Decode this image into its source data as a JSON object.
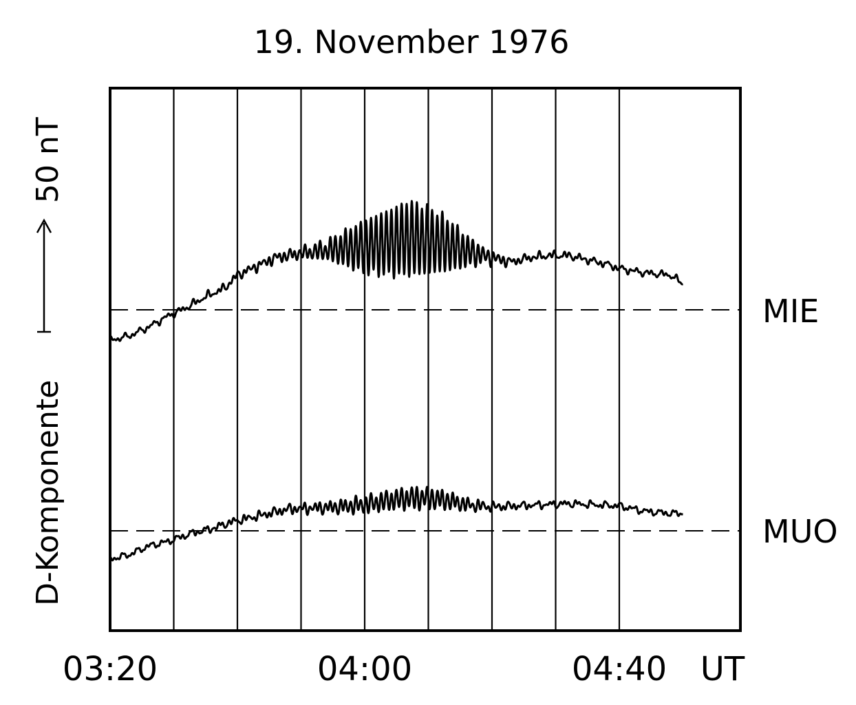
{
  "chart_data": {
    "type": "line",
    "title": "19. November 1976",
    "ylabel": "D-Komponente",
    "scale_bar_label": "50 nT",
    "x_unit": "UT",
    "x_ticks": [
      "03:20",
      "04:00",
      "04:40"
    ],
    "x_range": [
      "03:20",
      "04:50"
    ],
    "grid": "vertical lines every 10 min",
    "series": [
      {
        "name": "MIE",
        "baseline_nT": 0,
        "trend_nT": [
          [
            0,
            -14
          ],
          [
            3,
            -12
          ],
          [
            6,
            -8
          ],
          [
            9,
            -3
          ],
          [
            12,
            1
          ],
          [
            15,
            6
          ],
          [
            18,
            10
          ],
          [
            20,
            16
          ],
          [
            23,
            20
          ],
          [
            26,
            24
          ],
          [
            30,
            26
          ],
          [
            33,
            27
          ],
          [
            36,
            28
          ],
          [
            40,
            29
          ],
          [
            44,
            31
          ],
          [
            47,
            33
          ],
          [
            50,
            32
          ],
          [
            53,
            30
          ],
          [
            56,
            27
          ],
          [
            60,
            24
          ],
          [
            63,
            22
          ],
          [
            66,
            24
          ],
          [
            69,
            25
          ],
          [
            72,
            25
          ],
          [
            75,
            23
          ],
          [
            78,
            21
          ],
          [
            80,
            19
          ],
          [
            84,
            17
          ],
          [
            88,
            16
          ],
          [
            90,
            12
          ]
        ],
        "oscillation_amplitude_nT": [
          [
            0,
            0
          ],
          [
            10,
            0.4
          ],
          [
            20,
            1
          ],
          [
            30,
            2
          ],
          [
            34,
            4
          ],
          [
            37,
            8
          ],
          [
            40,
            12
          ],
          [
            44,
            15
          ],
          [
            47,
            17
          ],
          [
            50,
            15
          ],
          [
            53,
            12
          ],
          [
            56,
            7
          ],
          [
            59,
            3
          ],
          [
            63,
            1
          ],
          [
            70,
            0.8
          ],
          [
            80,
            0.5
          ],
          [
            90,
            0.3
          ]
        ],
        "oscillation_period_min": 0.8
      },
      {
        "name": "MUO",
        "baseline_nT": 0,
        "trend_nT": [
          [
            0,
            -13
          ],
          [
            3,
            -11
          ],
          [
            6,
            -7
          ],
          [
            9,
            -5
          ],
          [
            13,
            -1
          ],
          [
            16,
            1
          ],
          [
            19,
            4
          ],
          [
            22,
            6
          ],
          [
            25,
            8
          ],
          [
            28,
            10
          ],
          [
            32,
            10.5
          ],
          [
            36,
            11
          ],
          [
            40,
            12
          ],
          [
            44,
            14
          ],
          [
            47,
            15
          ],
          [
            50,
            15
          ],
          [
            53,
            14
          ],
          [
            56,
            12
          ],
          [
            60,
            11
          ],
          [
            64,
            11.5
          ],
          [
            68,
            12
          ],
          [
            72,
            12.5
          ],
          [
            76,
            12
          ],
          [
            80,
            11.5
          ],
          [
            84,
            9
          ],
          [
            88,
            8
          ],
          [
            90,
            8
          ]
        ],
        "oscillation_amplitude_nT": [
          [
            0,
            0
          ],
          [
            10,
            0.3
          ],
          [
            20,
            0.8
          ],
          [
            30,
            1.4
          ],
          [
            35,
            2.2
          ],
          [
            40,
            3.4
          ],
          [
            45,
            4.2
          ],
          [
            48,
            4.6
          ],
          [
            52,
            4
          ],
          [
            56,
            2.4
          ],
          [
            60,
            1.2
          ],
          [
            66,
            0.6
          ],
          [
            80,
            0.4
          ],
          [
            90,
            0.3
          ]
        ],
        "oscillation_period_min": 0.8
      }
    ]
  }
}
